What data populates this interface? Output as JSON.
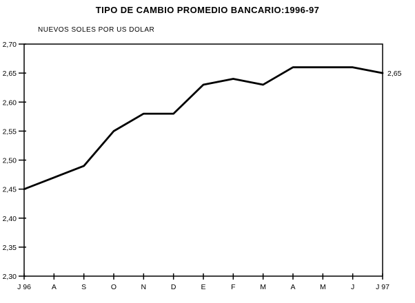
{
  "header": {
    "title": "TIPO DE CAMBIO PROMEDIO BANCARIO:1996-97",
    "subtitle": "NUEVOS SOLES POR US DOLAR"
  },
  "chart_data": {
    "type": "line",
    "title": "TIPO DE CAMBIO PROMEDIO BANCARIO:1996-97",
    "subtitle": "NUEVOS SOLES POR US DOLAR",
    "categories": [
      "J 96",
      "A",
      "S",
      "O",
      "N",
      "D",
      "E",
      "F",
      "M",
      "A",
      "M",
      "J",
      "J 97"
    ],
    "values": [
      2.45,
      2.47,
      2.49,
      2.55,
      2.58,
      2.58,
      2.63,
      2.64,
      2.63,
      2.66,
      2.66,
      2.66,
      2.65
    ],
    "xlabel": "",
    "ylabel": "NUEVOS SOLES POR US DOLAR",
    "ylim": [
      2.3,
      2.7
    ],
    "ytick_step": 0.05,
    "ytick_labels": [
      "2,70",
      "2,65",
      "2,60",
      "2,55",
      "2,50",
      "2,45",
      "2,40",
      "2,35",
      "2,30"
    ],
    "end_label": "2,65",
    "decimal_separator": ",",
    "grid": false,
    "legend_position": "none",
    "line_color": "#000000",
    "frame_color": "#000000",
    "background_color": "#ffffff"
  }
}
